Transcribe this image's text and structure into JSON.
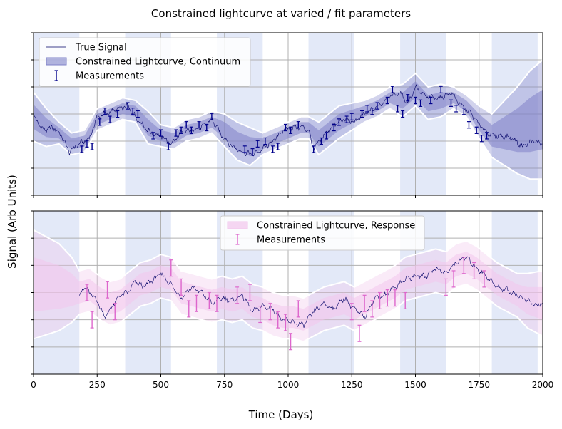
{
  "chart_data": {
    "type": "line",
    "title": "Constrained lightcurve at varied / fit parameters",
    "xlabel": "Time (Days)",
    "ylabel": "Signal (Arb Units)",
    "xlim": [
      0,
      2000
    ],
    "xticks": [
      0,
      250,
      500,
      750,
      1000,
      1250,
      1500,
      1750,
      2000
    ],
    "grid": true,
    "season_bands": [
      [
        0,
        180
      ],
      [
        360,
        540
      ],
      [
        720,
        900
      ],
      [
        1080,
        1260
      ],
      [
        1440,
        1620
      ],
      [
        1800,
        1980
      ]
    ],
    "colors": {
      "true_signal": "#000066",
      "continuum": "#00008b",
      "continuum_band": "#7f82c8",
      "response": "#dd66cc",
      "response_band": "#f2c6ec",
      "season_band": "#c8d3f2",
      "grid": "#b0b0b0"
    },
    "panels": [
      {
        "legend_position": "upper left",
        "legend": [
          {
            "label": "True Signal",
            "kind": "line"
          },
          {
            "label": "Constrained Lightcurve, Continuum",
            "kind": "band"
          },
          {
            "label": "Measurements",
            "kind": "errorbar"
          }
        ],
        "ylim": [
          0,
          6
        ],
        "yticks": [
          0,
          1,
          2,
          3,
          4,
          5,
          6
        ],
        "true_signal_x": [
          0,
          40,
          80,
          110,
          140,
          180,
          220,
          250,
          280,
          310,
          340,
          370,
          400,
          430,
          460,
          500,
          540,
          580,
          620,
          660,
          700,
          740,
          780,
          820,
          860,
          900,
          940,
          980,
          1020,
          1060,
          1080,
          1100,
          1140,
          1180,
          1220,
          1260,
          1300,
          1340,
          1380,
          1410,
          1440,
          1470,
          1500,
          1530,
          1560,
          1600,
          1640,
          1680,
          1720,
          1760,
          1800,
          1840,
          1880,
          1920,
          1960,
          2000
        ],
        "true_signal_y": [
          2.9,
          2.4,
          2.5,
          2.2,
          1.6,
          1.9,
          2.1,
          2.9,
          3.0,
          3.1,
          3.2,
          3.3,
          2.9,
          2.6,
          2.3,
          2.2,
          1.9,
          2.3,
          2.4,
          2.5,
          2.8,
          2.2,
          1.8,
          1.6,
          1.5,
          1.7,
          2.0,
          2.4,
          2.5,
          2.5,
          2.4,
          1.7,
          2.2,
          2.6,
          2.8,
          2.7,
          3.0,
          3.2,
          3.5,
          3.7,
          3.8,
          3.4,
          4.0,
          3.7,
          3.6,
          3.6,
          3.8,
          3.3,
          3.0,
          2.5,
          2.2,
          2.2,
          2.1,
          1.8,
          2.0,
          1.9
        ],
        "continuum_x": [
          0,
          50,
          100,
          150,
          200,
          250,
          300,
          350,
          400,
          450,
          500,
          550,
          600,
          650,
          700,
          750,
          800,
          850,
          900,
          950,
          1000,
          1050,
          1080,
          1120,
          1160,
          1200,
          1250,
          1300,
          1350,
          1400,
          1450,
          1500,
          1550,
          1600,
          1650,
          1700,
          1750,
          1800,
          1850,
          1900,
          1950,
          2000
        ],
        "continuum_y": [
          2.9,
          2.5,
          2.3,
          1.9,
          2.0,
          2.8,
          3.0,
          3.2,
          3.1,
          2.5,
          2.2,
          2.1,
          2.4,
          2.5,
          2.7,
          2.4,
          2.0,
          1.8,
          1.9,
          2.1,
          2.3,
          2.5,
          2.5,
          2.1,
          2.4,
          2.7,
          2.9,
          3.1,
          3.3,
          3.6,
          3.5,
          3.9,
          3.4,
          3.5,
          3.6,
          3.3,
          2.7,
          2.2,
          2.3,
          2.4,
          2.6,
          2.8
        ],
        "continuum_sigma": [
          0.45,
          0.35,
          0.2,
          0.2,
          0.2,
          0.2,
          0.2,
          0.2,
          0.2,
          0.3,
          0.2,
          0.2,
          0.2,
          0.2,
          0.2,
          0.3,
          0.35,
          0.35,
          0.2,
          0.2,
          0.2,
          0.2,
          0.2,
          0.3,
          0.3,
          0.3,
          0.25,
          0.2,
          0.2,
          0.2,
          0.3,
          0.3,
          0.3,
          0.3,
          0.2,
          0.2,
          0.3,
          0.4,
          0.6,
          0.8,
          1.0,
          1.1
        ],
        "measurements_x": [
          190,
          210,
          230,
          260,
          280,
          300,
          330,
          370,
          390,
          410,
          470,
          500,
          530,
          560,
          580,
          600,
          620,
          650,
          680,
          700,
          830,
          860,
          880,
          910,
          940,
          960,
          990,
          1010,
          1040,
          1100,
          1130,
          1150,
          1180,
          1200,
          1230,
          1250,
          1290,
          1310,
          1330,
          1350,
          1390,
          1410,
          1430,
          1450,
          1470,
          1500,
          1520,
          1560,
          1600,
          1640,
          1660,
          1690,
          1710,
          1740,
          1760,
          1780
        ],
        "measurements_y": [
          1.7,
          1.9,
          1.8,
          2.7,
          3.1,
          2.8,
          3.0,
          3.3,
          3.1,
          3.0,
          2.2,
          2.3,
          1.8,
          2.3,
          2.4,
          2.6,
          2.4,
          2.6,
          2.5,
          2.9,
          1.7,
          1.6,
          1.9,
          2.0,
          1.7,
          1.8,
          2.5,
          2.4,
          2.6,
          1.7,
          2.0,
          2.2,
          2.5,
          2.7,
          2.8,
          2.9,
          3.0,
          3.2,
          3.1,
          3.3,
          3.5,
          3.9,
          3.2,
          3.0,
          3.6,
          3.5,
          3.4,
          3.5,
          3.9,
          3.4,
          3.2,
          3.1,
          2.6,
          2.4,
          2.1,
          2.2
        ],
        "measurements_err": 0.12
      },
      {
        "legend_position": "upper center",
        "legend": [
          {
            "label": "Constrained Lightcurve, Response",
            "kind": "band"
          },
          {
            "label": "Measurements",
            "kind": "errorbar"
          }
        ],
        "ylim": [
          0,
          6
        ],
        "yticks": [
          0,
          1,
          2,
          3,
          4,
          5,
          6
        ],
        "true_signal_x": [
          180,
          200,
          220,
          250,
          280,
          310,
          340,
          370,
          400,
          430,
          460,
          500,
          540,
          580,
          620,
          660,
          700,
          740,
          780,
          820,
          860,
          900,
          940,
          980,
          1020,
          1060,
          1100,
          1140,
          1180,
          1220,
          1260,
          1300,
          1340,
          1380,
          1420,
          1460,
          1500,
          1540,
          1580,
          1620,
          1660,
          1700,
          1740,
          1780,
          1820,
          1860,
          1900,
          1940,
          1980,
          2000
        ],
        "true_signal_y": [
          2.9,
          3.2,
          3.0,
          2.7,
          2.1,
          2.5,
          2.9,
          3.0,
          3.4,
          3.2,
          3.4,
          3.7,
          3.3,
          2.8,
          3.2,
          3.0,
          2.6,
          2.8,
          2.7,
          2.9,
          2.3,
          2.5,
          2.4,
          2.0,
          1.9,
          1.8,
          2.3,
          2.6,
          2.4,
          2.8,
          2.4,
          2.1,
          2.8,
          2.9,
          3.2,
          3.5,
          3.6,
          3.6,
          3.9,
          3.7,
          4.1,
          4.3,
          3.9,
          3.6,
          3.2,
          3.1,
          2.9,
          2.7,
          2.5,
          2.7
        ],
        "response_x": [
          0,
          50,
          100,
          150,
          180,
          220,
          260,
          300,
          340,
          380,
          420,
          460,
          500,
          540,
          580,
          620,
          660,
          700,
          740,
          780,
          820,
          860,
          900,
          940,
          980,
          1020,
          1060,
          1100,
          1140,
          1180,
          1220,
          1260,
          1300,
          1340,
          1380,
          1420,
          1460,
          1500,
          1540,
          1580,
          1620,
          1660,
          1700,
          1740,
          1780,
          1820,
          1860,
          1900,
          1940,
          2000
        ],
        "response_y": [
          3.3,
          3.25,
          3.2,
          3.1,
          3.0,
          3.1,
          2.8,
          2.6,
          2.7,
          3.0,
          3.3,
          3.4,
          3.6,
          3.5,
          3.0,
          2.9,
          2.8,
          2.7,
          2.8,
          2.7,
          2.8,
          2.5,
          2.4,
          2.2,
          2.1,
          2.1,
          2.0,
          2.2,
          2.4,
          2.5,
          2.6,
          2.4,
          2.6,
          2.8,
          3.0,
          3.2,
          3.5,
          3.6,
          3.7,
          3.8,
          3.7,
          4.0,
          4.1,
          3.9,
          3.6,
          3.3,
          3.1,
          2.9,
          2.7,
          2.6
        ],
        "response_sigma": [
          1.0,
          0.9,
          0.8,
          0.6,
          0.4,
          0.4,
          0.4,
          0.4,
          0.4,
          0.4,
          0.4,
          0.4,
          0.4,
          0.4,
          0.4,
          0.4,
          0.4,
          0.4,
          0.4,
          0.4,
          0.4,
          0.4,
          0.4,
          0.4,
          0.4,
          0.4,
          0.4,
          0.4,
          0.4,
          0.4,
          0.4,
          0.4,
          0.4,
          0.4,
          0.4,
          0.4,
          0.4,
          0.4,
          0.4,
          0.4,
          0.4,
          0.4,
          0.4,
          0.4,
          0.4,
          0.4,
          0.4,
          0.4,
          0.5,
          0.6
        ],
        "measurements_x": [
          210,
          230,
          290,
          320,
          540,
          580,
          610,
          640,
          690,
          720,
          800,
          850,
          890,
          930,
          960,
          990,
          1010,
          1040,
          1250,
          1280,
          1300,
          1330,
          1360,
          1390,
          1420,
          1460,
          1620,
          1650,
          1690,
          1730,
          1770
        ],
        "measurements_y": [
          3.0,
          2.0,
          3.1,
          2.3,
          3.9,
          3.2,
          2.4,
          2.6,
          2.7,
          2.6,
          2.9,
          3.0,
          2.2,
          2.3,
          2.0,
          1.9,
          1.2,
          2.4,
          2.3,
          1.5,
          2.6,
          2.4,
          2.7,
          2.8,
          2.8,
          2.7,
          3.2,
          3.5,
          4.0,
          3.8,
          3.5
        ],
        "measurements_err": 0.3
      }
    ]
  }
}
